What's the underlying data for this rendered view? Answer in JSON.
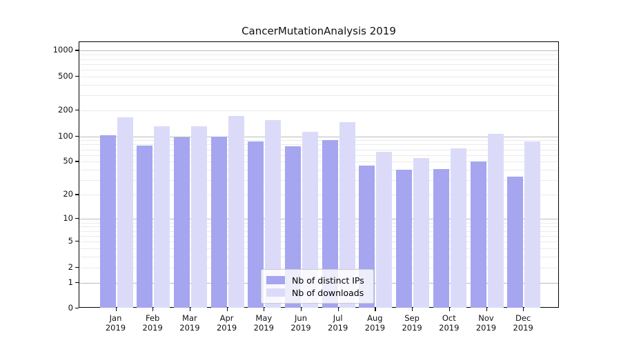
{
  "figure": {
    "background": "#ffffff",
    "text_color": "#111111"
  },
  "chart_data": {
    "type": "bar",
    "title": "CancerMutationAnalysis 2019",
    "categories": [
      "Jan",
      "Feb",
      "Mar",
      "Apr",
      "May",
      "Jun",
      "Jul",
      "Aug",
      "Sep",
      "Oct",
      "Nov",
      "Dec"
    ],
    "year_label": "2019",
    "series": [
      {
        "name": "Nb of distinct IPs",
        "color": "#a5a5f0",
        "values": [
          103,
          78,
          97,
          99,
          87,
          76,
          90,
          45,
          40,
          41,
          50,
          33
        ]
      },
      {
        "name": "Nb of downloads",
        "color": "#dbdbf9",
        "values": [
          168,
          130,
          132,
          174,
          154,
          112,
          147,
          66,
          55,
          72,
          107,
          87
        ]
      }
    ],
    "xlabel": "",
    "ylabel": "",
    "yscale": "log1p",
    "yticks": [
      1000,
      500,
      200,
      100,
      50,
      20,
      10,
      5,
      2,
      1,
      0
    ],
    "ylim": [
      0,
      1250
    ],
    "grid": {
      "major_ticks": [
        1,
        10,
        100,
        1000
      ],
      "minor_base": [
        2,
        3,
        4,
        5,
        6,
        7,
        8,
        9
      ],
      "major_color": "#bbbbbb",
      "minor_color": "#eaeaea"
    },
    "legend": {
      "position": "lower center",
      "entries": [
        "Nb of distinct IPs",
        "Nb of downloads"
      ]
    }
  }
}
